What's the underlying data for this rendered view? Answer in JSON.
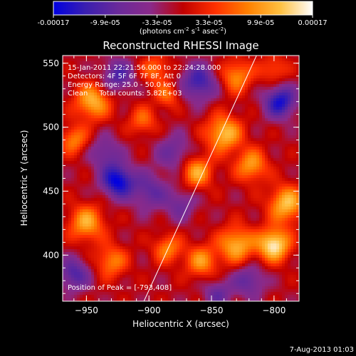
{
  "colorbar": {
    "ticks": [
      "-0.00017",
      "-9.9e-05",
      "-3.3e-05",
      "3.3e-05",
      "9.9e-05",
      "0.00017"
    ],
    "unit_prefix": "(photons cm",
    "unit_exp1": "-2",
    "unit_mid1": " s",
    "unit_exp2": "-1",
    "unit_mid2": " asec",
    "unit_exp3": "-2",
    "unit_suffix": ")",
    "colors": [
      "#0000e0",
      "#3a1fb0",
      "#6a2a9a",
      "#8a2a8a",
      "#c00000",
      "#ff3000",
      "#ff8000",
      "#ffc040",
      "#ffffff"
    ]
  },
  "chart_data": {
    "type": "heatmap",
    "title": "Reconstructed RHESSI Image",
    "xlabel": "Heliocentric X (arcsec)",
    "ylabel": "Heliocentric Y (arcsec)",
    "xlim": [
      -969,
      -780
    ],
    "ylim": [
      364,
      556
    ],
    "xticks": [
      -950,
      -900,
      -850,
      -800
    ],
    "yticks": [
      400,
      450,
      500,
      550
    ],
    "xtick_labels": [
      "−950",
      "−900",
      "−850",
      "−800"
    ],
    "ytick_labels": [
      "400",
      "450",
      "500",
      "550"
    ],
    "value_range": [
      -0.00017,
      0.00017
    ],
    "annotations": [
      "15-Jan-2011 22:21:56.000 to 22:24:28.000",
      "Detectors: 4F 5F 6F 7F 8F, Att 0",
      "Energy Range: 25.0 - 50.0 keV",
      "Clean     Total counts: 5.82E+03"
    ],
    "peak_label": "Position of Peak = [-793,408]",
    "limb_line": [
      [
        -904,
        364
      ],
      [
        -814,
        556
      ]
    ],
    "sources": [
      {
        "x": -800,
        "y": 408,
        "amp": 1.0,
        "sigma": 9
      },
      {
        "x": -790,
        "y": 440,
        "amp": 0.8,
        "sigma": 10
      },
      {
        "x": -830,
        "y": 408,
        "amp": 0.75,
        "sigma": 10
      },
      {
        "x": -858,
        "y": 395,
        "amp": 0.6,
        "sigma": 9
      },
      {
        "x": -885,
        "y": 405,
        "amp": 0.55,
        "sigma": 8
      },
      {
        "x": -840,
        "y": 495,
        "amp": 0.8,
        "sigma": 10
      },
      {
        "x": -862,
        "y": 465,
        "amp": 0.7,
        "sigma": 9
      },
      {
        "x": -818,
        "y": 470,
        "amp": 0.65,
        "sigma": 9
      },
      {
        "x": -830,
        "y": 540,
        "amp": 0.6,
        "sigma": 9
      },
      {
        "x": -945,
        "y": 520,
        "amp": 0.75,
        "sigma": 10
      },
      {
        "x": -960,
        "y": 490,
        "amp": 0.55,
        "sigma": 8
      },
      {
        "x": -950,
        "y": 425,
        "amp": 0.7,
        "sigma": 10
      },
      {
        "x": -930,
        "y": 395,
        "amp": 0.55,
        "sigma": 9
      },
      {
        "x": -895,
        "y": 545,
        "amp": 0.5,
        "sigma": 8
      },
      {
        "x": -905,
        "y": 505,
        "amp": 0.45,
        "sigma": 8
      },
      {
        "x": -885,
        "y": 525,
        "amp": 0.45,
        "sigma": 7
      },
      {
        "x": -800,
        "y": 545,
        "amp": 0.4,
        "sigma": 8
      },
      {
        "x": -925,
        "y": 458,
        "amp": -0.95,
        "sigma": 9
      },
      {
        "x": -795,
        "y": 520,
        "amp": -0.85,
        "sigma": 9
      },
      {
        "x": -860,
        "y": 535,
        "amp": -0.7,
        "sigma": 10
      },
      {
        "x": -925,
        "y": 540,
        "amp": -0.6,
        "sigma": 9
      },
      {
        "x": -960,
        "y": 385,
        "amp": -0.6,
        "sigma": 9
      },
      {
        "x": -900,
        "y": 450,
        "amp": -0.5,
        "sigma": 10
      },
      {
        "x": -880,
        "y": 480,
        "amp": -0.45,
        "sigma": 10
      },
      {
        "x": -875,
        "y": 440,
        "amp": -0.4,
        "sigma": 9
      },
      {
        "x": -820,
        "y": 380,
        "amp": -0.5,
        "sigma": 9
      },
      {
        "x": -845,
        "y": 370,
        "amp": -0.45,
        "sigma": 8
      },
      {
        "x": -935,
        "y": 480,
        "amp": -0.45,
        "sigma": 9
      }
    ]
  },
  "footer": {
    "date": "7-Aug-2013 01:03"
  }
}
